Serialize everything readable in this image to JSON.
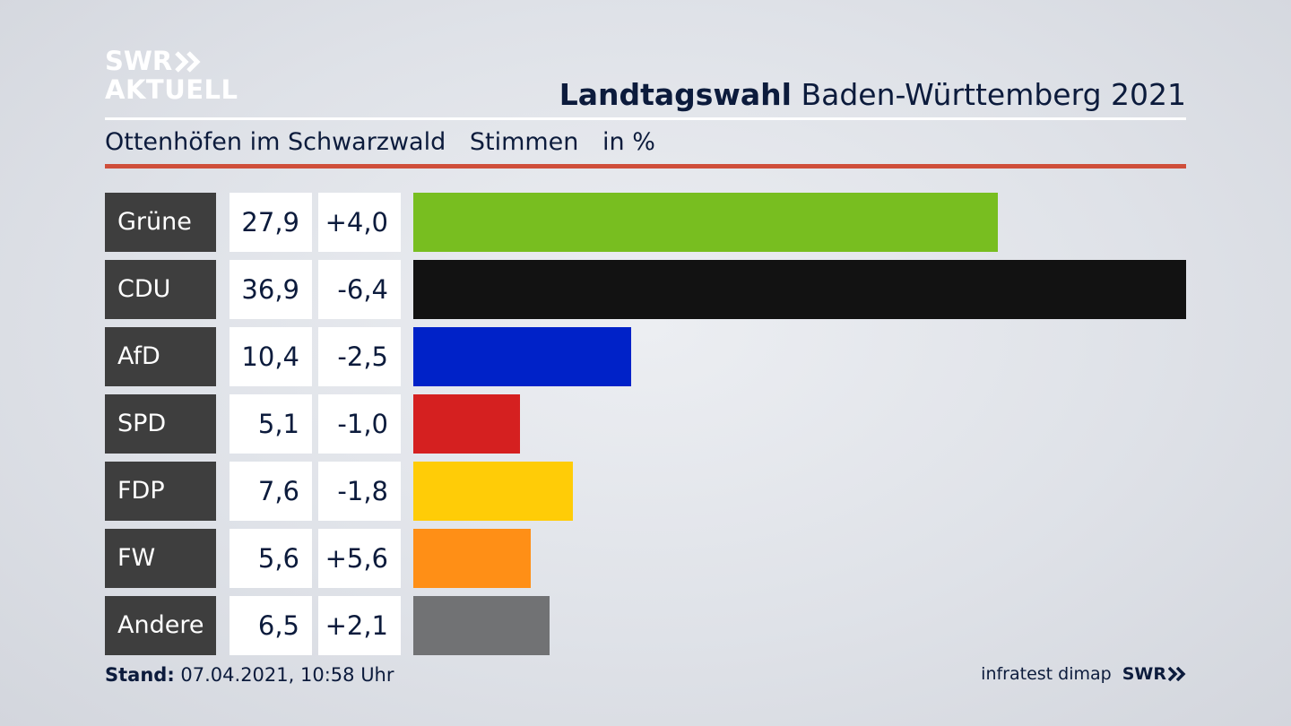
{
  "brand": {
    "line1": "SWR",
    "line2": "AKTUELL"
  },
  "header": {
    "title_bold": "Landtagswahl",
    "title_rest": "Baden-Württemberg 2021",
    "location": "Ottenhöfen im Schwarzwald",
    "measure": "Stimmen",
    "unit": "in %"
  },
  "colors": {
    "accent_red": "#cf4e3a",
    "party_label_bg": "#3e3e3e"
  },
  "chart_data": {
    "type": "bar",
    "orientation": "horizontal",
    "categories": [
      "Grüne",
      "CDU",
      "AfD",
      "SPD",
      "FDP",
      "FW",
      "Andere"
    ],
    "values": [
      27.9,
      36.9,
      10.4,
      5.1,
      7.6,
      5.6,
      6.5
    ],
    "value_labels": [
      "27,9",
      "36,9",
      "10,4",
      "5,1",
      "7,6",
      "5,6",
      "6,5"
    ],
    "changes": [
      4.0,
      -6.4,
      -2.5,
      -1.0,
      -1.8,
      5.6,
      2.1
    ],
    "change_labels": [
      "+4,0",
      "-6,4",
      "-2,5",
      "-1,0",
      "-1,8",
      "+5,6",
      "+2,1"
    ],
    "bar_colors": [
      "#78be20",
      "#121212",
      "#0022c8",
      "#d52020",
      "#ffcc07",
      "#ff8f16",
      "#717274"
    ],
    "xlim": [
      0,
      36.9
    ],
    "grid": false
  },
  "footer": {
    "stand_label": "Stand:",
    "stand_value": "07.04.2021, 10:58 Uhr",
    "source": "infratest dimap",
    "source_brand": "SWR"
  }
}
